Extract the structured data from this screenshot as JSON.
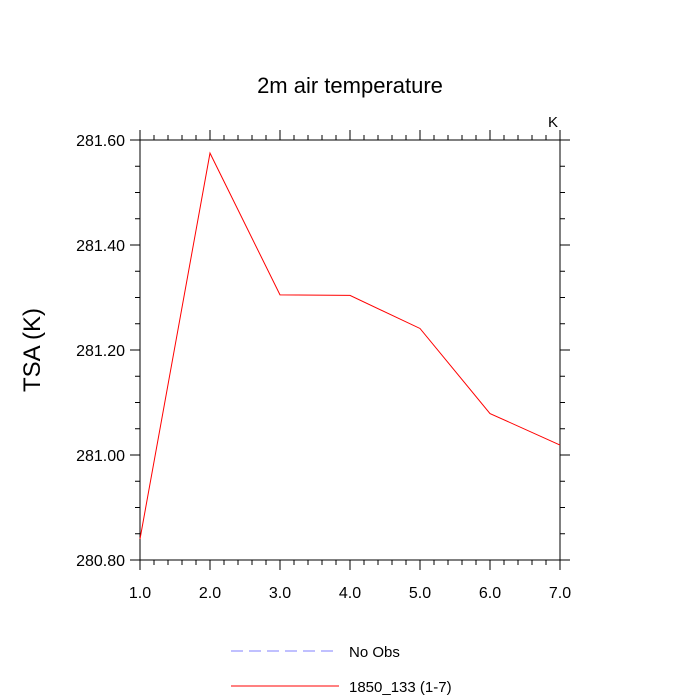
{
  "chart_data": {
    "type": "line",
    "title": "2m air temperature",
    "units_label": "K",
    "ylabel": "TSA  (K)",
    "xlabel": "",
    "xlim": [
      1.0,
      7.0
    ],
    "ylim": [
      280.8,
      281.6
    ],
    "x_ticks": [
      1.0,
      2.0,
      3.0,
      4.0,
      5.0,
      6.0,
      7.0
    ],
    "x_tick_labels": [
      "1.0",
      "2.0",
      "3.0",
      "4.0",
      "5.0",
      "6.0",
      "7.0"
    ],
    "y_ticks": [
      280.8,
      281.0,
      281.2,
      281.4,
      281.6
    ],
    "y_tick_labels": [
      "280.80",
      "281.00",
      "281.20",
      "281.40",
      "281.60"
    ],
    "grid": false,
    "legend_position": "bottom-center",
    "series": [
      {
        "name": "1850_133 (1-7)",
        "color": "#ff0000",
        "dash": "solid",
        "x": [
          1.0,
          2.0,
          3.0,
          4.0,
          5.0,
          6.0,
          7.0
        ],
        "values": [
          280.84,
          281.575,
          281.305,
          281.304,
          281.241,
          281.079,
          281.019
        ]
      }
    ],
    "legend": [
      {
        "label": "No Obs",
        "color": "#8080ff",
        "dash": "dashed"
      },
      {
        "label": "1850_133 (1-7)",
        "color": "#ff0000",
        "dash": "solid"
      }
    ]
  }
}
